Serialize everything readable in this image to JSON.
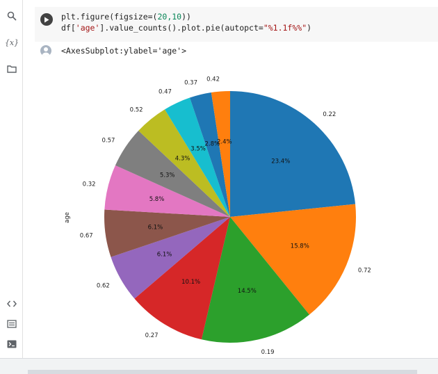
{
  "cell": {
    "code_line1_prefix": "plt.figure(figsize=(",
    "code_line1_nums": "20,10",
    "code_line1_suffix": "))",
    "code_line2_prefix": "df[",
    "code_line2_str1": "'age'",
    "code_line2_mid": "].value_counts().plot.pie(autopct=",
    "code_line2_str2": "\"%1.1f%%\"",
    "code_line2_suffix": ")"
  },
  "output": {
    "text": "<AxesSubplot:ylabel='age'>"
  },
  "sidebar": {
    "icons": [
      "search-icon",
      "variables-icon",
      "folder-icon",
      "code-snippets-icon",
      "command-palette-icon",
      "terminal-icon"
    ],
    "variables_text": "{x}"
  },
  "chart_data": {
    "type": "pie",
    "ylabel": "age",
    "start_angle_deg": 90,
    "counterclockwise": false,
    "slices": [
      {
        "label": "0.22",
        "pct": 23.4,
        "pct_label": "23.4%",
        "color": "#1f77b4"
      },
      {
        "label": "0.72",
        "pct": 15.8,
        "pct_label": "15.8%",
        "color": "#ff7f0e"
      },
      {
        "label": "0.19",
        "pct": 14.5,
        "pct_label": "14.5%",
        "color": "#2ca02c"
      },
      {
        "label": "0.27",
        "pct": 10.1,
        "pct_label": "10.1%",
        "color": "#d62728"
      },
      {
        "label": "0.62",
        "pct": 6.1,
        "pct_label": "6.1%",
        "color": "#9467bd"
      },
      {
        "label": "0.67",
        "pct": 6.1,
        "pct_label": "6.1%",
        "color": "#8c564b"
      },
      {
        "label": "0.32",
        "pct": 5.8,
        "pct_label": "5.8%",
        "color": "#e377c2"
      },
      {
        "label": "0.57",
        "pct": 5.3,
        "pct_label": "5.3%",
        "color": "#7f7f7f"
      },
      {
        "label": "0.52",
        "pct": 4.3,
        "pct_label": "4.3%",
        "color": "#bcbd22"
      },
      {
        "label": "0.47",
        "pct": 3.5,
        "pct_label": "3.5%",
        "color": "#17becf"
      },
      {
        "label": "0.37",
        "pct": 2.8,
        "pct_label": "2.8%",
        "color": "#1f77b4"
      },
      {
        "label": "0.42",
        "pct": 2.4,
        "pct_label": "2.4%",
        "color": "#ff7f0e"
      }
    ]
  }
}
